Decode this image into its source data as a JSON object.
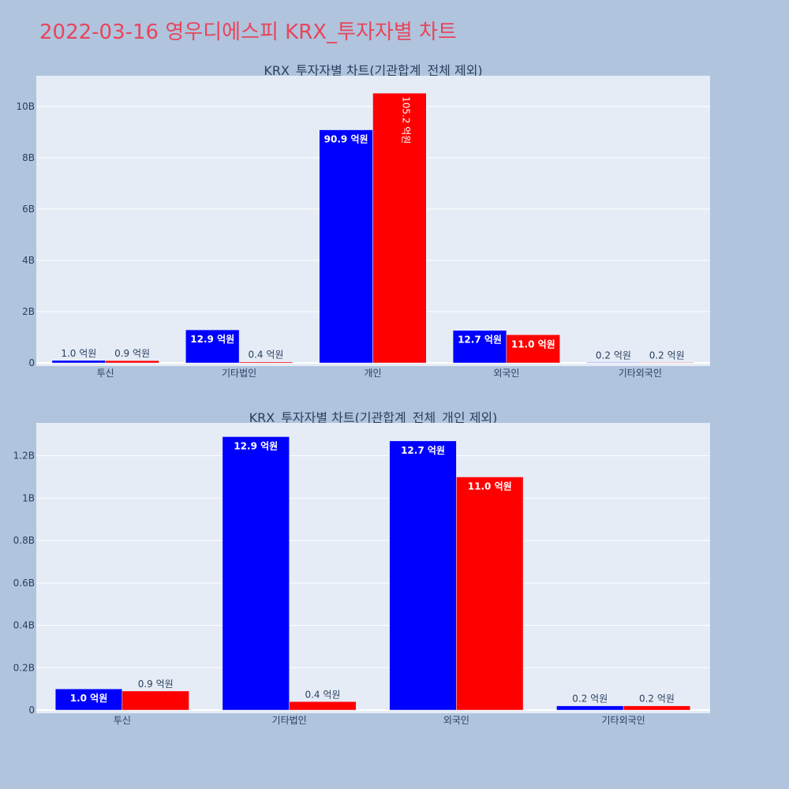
{
  "page": {
    "title": "2022-03-16 영우디에스피 KRX_투자자별 차트",
    "title_color": "#e8455a",
    "background": "#b0c4de",
    "plot_background": "#e5ecf6",
    "buy_color": "#0000ff",
    "sell_color": "#ff0000"
  },
  "chart_data": [
    {
      "type": "bar",
      "title": "KRX_투자자별 차트(기관합계_전체 제외)",
      "categories": [
        "투신",
        "기타법인",
        "개인",
        "외국인",
        "기타외국인"
      ],
      "series": [
        {
          "values": [
            100000000,
            1290000000,
            9090000000,
            1270000000,
            20000000
          ],
          "labels": [
            "1.0 억원",
            "12.9 억원",
            "90.9 억원",
            "12.7 억원",
            "0.2 억원"
          ],
          "color": "#0000ff"
        },
        {
          "values": [
            90000000,
            40000000,
            10520000000,
            1100000000,
            20000000
          ],
          "labels": [
            "0.9 억원",
            "0.4 억원",
            "105.2 억원",
            "11.0 억원",
            "0.2 억원"
          ],
          "color": "#ff0000"
        }
      ],
      "yticks": [
        0,
        2000000000,
        4000000000,
        6000000000,
        8000000000,
        10000000000
      ],
      "ytick_labels": [
        "0",
        "2B",
        "4B",
        "6B",
        "8B",
        "10B"
      ],
      "ylim": [
        0,
        11200000000
      ],
      "grid": true
    },
    {
      "type": "bar",
      "title": "KRX_투자자별 차트(기관합계_전체_개인 제외)",
      "categories": [
        "투신",
        "기타법인",
        "외국인",
        "기타외국인"
      ],
      "series": [
        {
          "values": [
            100000000,
            1290000000,
            1270000000,
            20000000
          ],
          "labels": [
            "1.0 억원",
            "12.9 억원",
            "12.7 억원",
            "0.2 억원"
          ],
          "color": "#0000ff"
        },
        {
          "values": [
            90000000,
            40000000,
            1100000000,
            20000000
          ],
          "labels": [
            "0.9 억원",
            "0.4 억원",
            "11.0 억원",
            "0.2 억원"
          ],
          "color": "#ff0000"
        }
      ],
      "yticks": [
        0,
        200000000,
        400000000,
        600000000,
        800000000,
        1000000000,
        1200000000
      ],
      "ytick_labels": [
        "0",
        "0.2B",
        "0.4B",
        "0.6B",
        "0.8B",
        "1B",
        "1.2B"
      ],
      "ylim": [
        0,
        1355000000
      ],
      "grid": true
    }
  ]
}
